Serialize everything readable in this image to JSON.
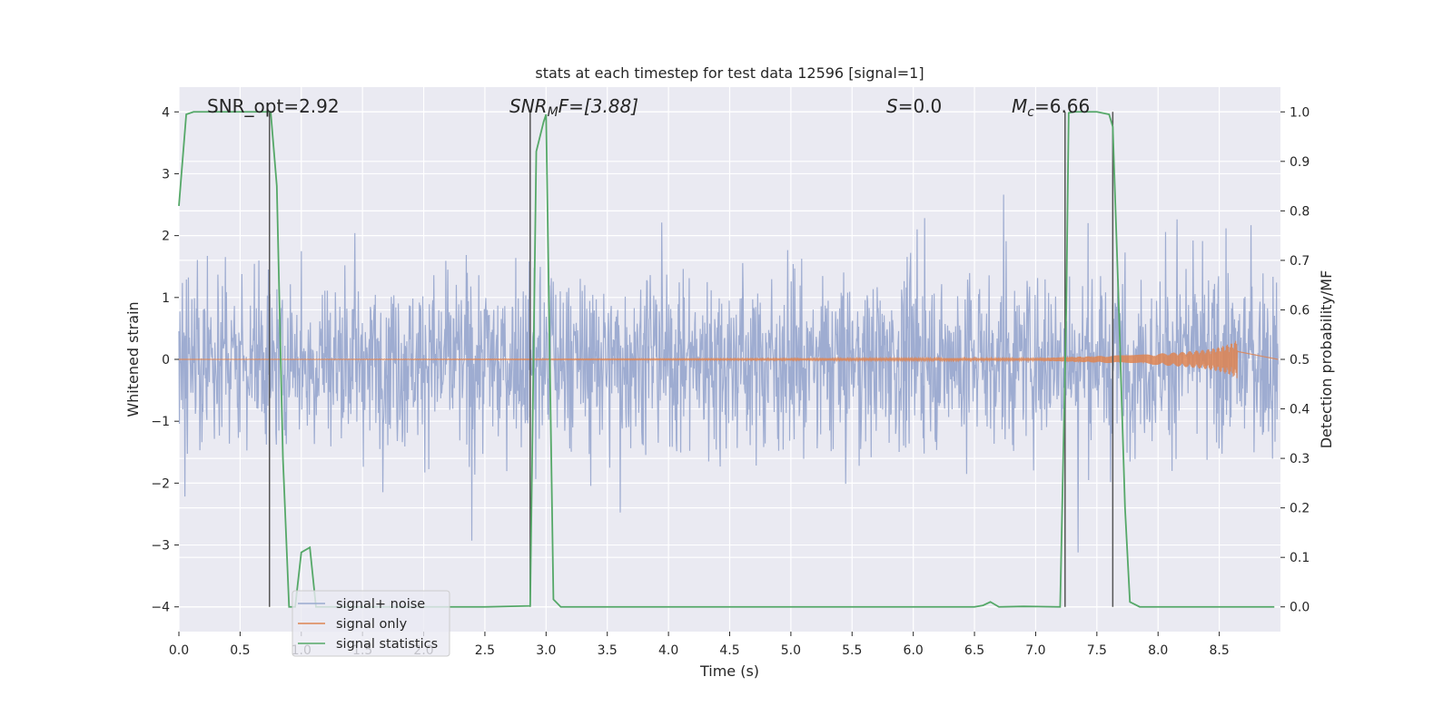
{
  "chart_data": {
    "type": "line",
    "title": "stats at each timestep for test data 12596 [signal=1]",
    "xlabel": "Time (s)",
    "ylabel": "Whitened strain",
    "y2label": "Detection probability/MF",
    "xlim": [
      0.0,
      9.0
    ],
    "ylim": [
      -4.4,
      4.4
    ],
    "y2lim": [
      -0.05,
      1.05
    ],
    "xticks": [
      "0.0",
      "0.5",
      "1.0",
      "1.5",
      "2.0",
      "2.5",
      "3.0",
      "3.5",
      "4.0",
      "4.5",
      "5.0",
      "5.5",
      "6.0",
      "6.5",
      "7.0",
      "7.5",
      "8.0",
      "8.5"
    ],
    "yticks": [
      "−4",
      "−3",
      "−2",
      "−1",
      "0",
      "1",
      "2",
      "3",
      "4"
    ],
    "y2ticks": [
      "0.0",
      "0.1",
      "0.2",
      "0.3",
      "0.4",
      "0.5",
      "0.6",
      "0.7",
      "0.8",
      "0.9",
      "1.0"
    ],
    "grid": true,
    "legend_position": "lower-left",
    "annotations": {
      "snr_opt": "SNR_opt=2.92",
      "snr_mf_base": "SNR",
      "snr_mf_sub": "M",
      "snr_mf_tail": "F=[3.88]",
      "s_var": "S",
      "s_val": "=0.0",
      "mc_base": "M",
      "mc_sub": "c",
      "mc_val": "=6.66"
    },
    "series": [
      {
        "name": "signal+ noise",
        "color": "#9aa9cf",
        "description_values": "whitened noise, roughly ±1.7 core with spikes up to ±4",
        "envelope_upper_typical": 1.65,
        "envelope_lower_typical": -1.55
      },
      {
        "name": "signal only",
        "color": "#dd8452",
        "x": [
          0.0,
          7.0,
          7.3,
          7.6,
          7.9,
          8.2,
          8.4,
          8.5,
          8.6,
          8.65
        ],
        "amplitude": [
          0.0,
          0.02,
          0.04,
          0.06,
          0.08,
          0.12,
          0.16,
          0.2,
          0.26,
          0.32
        ]
      },
      {
        "name": "signal statistics",
        "color": "#55a868",
        "axis": "right",
        "x": [
          0.0,
          0.06,
          0.12,
          0.3,
          0.55,
          0.72,
          0.75,
          0.8,
          0.85,
          0.9,
          0.95,
          1.0,
          1.07,
          1.12,
          1.2,
          1.5,
          2.0,
          2.5,
          2.87,
          2.92,
          2.98,
          3.0,
          3.06,
          3.12,
          3.5,
          4.0,
          4.5,
          5.0,
          5.5,
          6.0,
          6.5,
          6.57,
          6.63,
          6.7,
          6.9,
          7.2,
          7.25,
          7.27,
          7.32,
          7.5,
          7.6,
          7.63,
          7.68,
          7.73,
          7.77,
          7.85,
          8.0,
          8.5,
          8.95
        ],
        "values": [
          0.81,
          0.995,
          1.0,
          1.0,
          1.0,
          1.0,
          1.0,
          0.85,
          0.3,
          0.0,
          0.0,
          0.11,
          0.12,
          0.0,
          0.0,
          0.0,
          0.0,
          0.0,
          0.002,
          0.92,
          0.98,
          0.995,
          0.015,
          0.0,
          0.0,
          0.0,
          0.0,
          0.0,
          0.0,
          0.0,
          0.0,
          0.003,
          0.01,
          0.0,
          0.001,
          0.0,
          0.6,
          0.998,
          1.0,
          1.0,
          0.995,
          0.97,
          0.6,
          0.2,
          0.01,
          0.0,
          0.0,
          0.0,
          0.0
        ]
      }
    ],
    "vertical_markers_x": [
      0.74,
      2.87,
      7.24,
      7.63
    ]
  }
}
